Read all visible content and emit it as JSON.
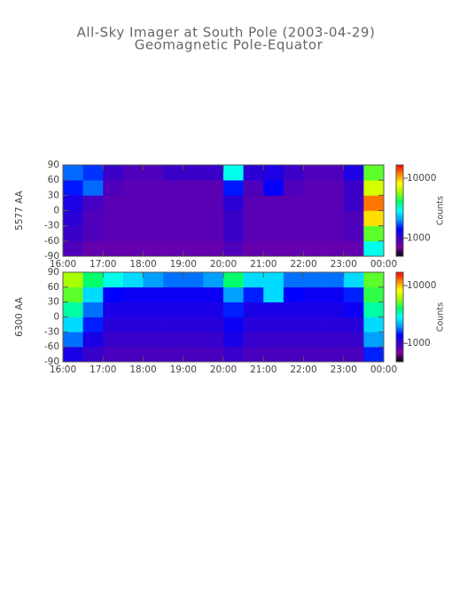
{
  "title": "All-Sky Imager at South Pole (2003-04-29)",
  "subtitle": "Geomagnetic Pole-Equator",
  "chart_data": [
    {
      "type": "heatmap",
      "ylabel": "5577 AA",
      "colorbar_label": "Counts",
      "log_color": true,
      "colors": [
        "#000000",
        "#7a00a0",
        "#3a00c8",
        "#0000ff",
        "#00a0ff",
        "#00ffff",
        "#00ff60",
        "#a0ff00",
        "#ffff00",
        "#ff8000",
        "#ff0000"
      ],
      "xlim": [
        16,
        24
      ],
      "ylim": [
        -90,
        90
      ],
      "clim": [
        500,
        16600
      ],
      "xticks": [
        {
          "value": 16,
          "label": "16:00"
        },
        {
          "value": 17,
          "label": "17:00"
        },
        {
          "value": 18,
          "label": "18:00"
        },
        {
          "value": 19,
          "label": "19:00"
        },
        {
          "value": 20,
          "label": "20:00"
        },
        {
          "value": 21,
          "label": "21:00"
        },
        {
          "value": 22,
          "label": "22:00"
        },
        {
          "value": 23,
          "label": "23:00"
        },
        {
          "value": 24,
          "label": "00:00"
        }
      ],
      "yticks": [
        -90,
        -60,
        -30,
        0,
        30,
        60,
        90
      ],
      "cticks": [
        1000,
        10000
      ],
      "xbins": [
        16,
        16.5,
        17,
        17.5,
        18,
        18.5,
        19,
        19.5,
        20,
        20.5,
        21,
        21.5,
        22,
        22.5,
        23,
        23.5,
        24
      ],
      "ybins": [
        -90,
        -60,
        -30,
        0,
        30,
        60,
        90
      ],
      "values": [
        [
          900,
          800,
          800,
          800,
          800,
          800,
          800,
          800,
          900,
          800,
          800,
          800,
          800,
          800,
          800,
          3000
        ],
        [
          1000,
          900,
          850,
          850,
          850,
          850,
          850,
          850,
          1000,
          850,
          850,
          850,
          850,
          850,
          900,
          5000
        ],
        [
          1100,
          900,
          850,
          850,
          850,
          850,
          850,
          850,
          1000,
          850,
          850,
          850,
          850,
          850,
          900,
          9000
        ],
        [
          1200,
          950,
          850,
          850,
          850,
          850,
          850,
          850,
          1100,
          850,
          850,
          850,
          850,
          850,
          1000,
          12000
        ],
        [
          1500,
          1800,
          900,
          850,
          850,
          850,
          850,
          850,
          1500,
          900,
          1400,
          900,
          850,
          850,
          1000,
          7000
        ],
        [
          1800,
          1600,
          1000,
          900,
          900,
          1000,
          1000,
          1000,
          3000,
          1100,
          1200,
          1000,
          900,
          900,
          1200,
          5000
        ]
      ]
    },
    {
      "type": "heatmap",
      "ylabel": "6300 AA",
      "colorbar_label": "Counts",
      "log_color": true,
      "colors": [
        "#000000",
        "#7a00a0",
        "#3a00c8",
        "#0000ff",
        "#00a0ff",
        "#00ffff",
        "#00ff60",
        "#a0ff00",
        "#ffff00",
        "#ff8000",
        "#ff0000"
      ],
      "xlim": [
        16,
        24
      ],
      "ylim": [
        -90,
        90
      ],
      "clim": [
        480,
        17000
      ],
      "xticks": [
        {
          "value": 16,
          "label": "16:00"
        },
        {
          "value": 17,
          "label": "17:00"
        },
        {
          "value": 18,
          "label": "18:00"
        },
        {
          "value": 19,
          "label": "19:00"
        },
        {
          "value": 20,
          "label": "20:00"
        },
        {
          "value": 21,
          "label": "21:00"
        },
        {
          "value": 22,
          "label": "22:00"
        },
        {
          "value": 23,
          "label": "23:00"
        },
        {
          "value": 24,
          "label": "00:00"
        }
      ],
      "yticks": [
        -90,
        -60,
        -30,
        0,
        30,
        60,
        90
      ],
      "cticks": [
        1000,
        10000
      ],
      "xbins": [
        16,
        16.5,
        17,
        17.5,
        18,
        18.5,
        19,
        19.5,
        20,
        20.5,
        21,
        21.5,
        22,
        22.5,
        23,
        23.5,
        24
      ],
      "ybins": [
        -90,
        -60,
        -30,
        0,
        30,
        60,
        90
      ],
      "values": [
        [
          1200,
          1000,
          900,
          900,
          900,
          900,
          900,
          900,
          1000,
          900,
          900,
          900,
          900,
          900,
          900,
          1500
        ],
        [
          1800,
          1200,
          1000,
          1000,
          1000,
          1000,
          1000,
          1000,
          1200,
          1000,
          1000,
          1000,
          1000,
          1000,
          1000,
          2000
        ],
        [
          2500,
          1500,
          1100,
          1100,
          1100,
          1100,
          1100,
          1100,
          1300,
          1100,
          1100,
          1100,
          1100,
          1100,
          1100,
          2500
        ],
        [
          3500,
          1800,
          1200,
          1200,
          1200,
          1200,
          1200,
          1200,
          1500,
          1200,
          1200,
          1200,
          1200,
          1200,
          1300,
          3500
        ],
        [
          5000,
          2500,
          1400,
          1300,
          1300,
          1300,
          1300,
          1300,
          2000,
          1500,
          2500,
          1400,
          1300,
          1300,
          1500,
          4500
        ],
        [
          6000,
          4000,
          3000,
          2500,
          2000,
          1800,
          1800,
          2000,
          4000,
          2500,
          2500,
          1800,
          1800,
          1800,
          2500,
          5000
        ]
      ]
    }
  ]
}
